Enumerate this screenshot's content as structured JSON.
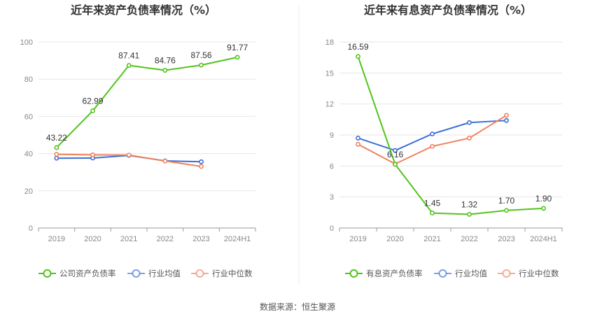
{
  "source_text": "数据来源：恒生聚源",
  "chart_data": [
    {
      "type": "line",
      "title": "近年来资产负债率情况（%）",
      "categories": [
        "2019",
        "2020",
        "2021",
        "2022",
        "2023",
        "2024H1"
      ],
      "yticks": [
        "0",
        "20",
        "40",
        "60",
        "80",
        "100"
      ],
      "ylim": [
        0,
        100
      ],
      "xlabel": "",
      "ylabel": "",
      "grid": true,
      "legend_position": "bottom",
      "series": [
        {
          "name": "公司资产负债率",
          "color": "#52c41a",
          "values": [
            43.22,
            62.99,
            87.41,
            84.76,
            87.56,
            91.77
          ],
          "labels": [
            "43.22",
            "62.99",
            "87.41",
            "84.76",
            "87.56",
            "91.77"
          ]
        },
        {
          "name": "行业均值",
          "color": "#3b6fd8",
          "values": [
            37.5,
            37.6,
            39.0,
            36.1,
            35.6,
            null
          ]
        },
        {
          "name": "行业中位数",
          "color": "#f0825b",
          "values": [
            39.6,
            39.3,
            39.2,
            36.0,
            33.1,
            null
          ]
        }
      ]
    },
    {
      "type": "line",
      "title": "近年来有息资产负债率情况（%）",
      "categories": [
        "2019",
        "2020",
        "2021",
        "2022",
        "2023",
        "2024H1"
      ],
      "yticks": [
        "0",
        "3",
        "6",
        "9",
        "12",
        "15",
        "18"
      ],
      "ylim": [
        0,
        18
      ],
      "xlabel": "",
      "ylabel": "",
      "grid": true,
      "legend_position": "bottom",
      "series": [
        {
          "name": "有息资产负债率",
          "color": "#52c41a",
          "values": [
            16.59,
            6.16,
            1.45,
            1.32,
            1.7,
            1.9
          ],
          "labels": [
            "16.59",
            "6.16",
            "1.45",
            "1.32",
            "1.70",
            "1.90"
          ]
        },
        {
          "name": "行业均值",
          "color": "#3b6fd8",
          "values": [
            8.7,
            7.5,
            9.1,
            10.2,
            10.4,
            null
          ]
        },
        {
          "name": "行业中位数",
          "color": "#f0825b",
          "values": [
            8.1,
            6.2,
            7.9,
            8.7,
            10.9,
            null
          ]
        }
      ]
    }
  ]
}
